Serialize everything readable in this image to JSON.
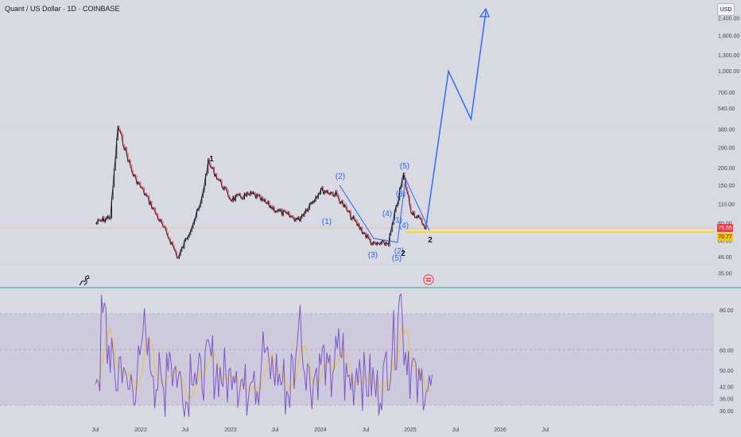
{
  "header": {
    "title": "Quant / US Dollar · 1D · COINBASE"
  },
  "currency_button": "USD",
  "price_axis": {
    "labels": [
      "2,400.00",
      "1,800.00",
      "1,300.00",
      "1,000.00",
      "700.00",
      "540.00",
      "380.00",
      "280.00",
      "200.00",
      "150.00",
      "110.00",
      "80.00",
      "60.00",
      "46.00",
      "35.00"
    ],
    "scale": "log"
  },
  "rsi_axis": {
    "labels": [
      "80.00",
      "60.00",
      "50.00",
      "42.00",
      "36.00",
      "30.00"
    ]
  },
  "time_axis": {
    "labels": [
      "Jul",
      "2022",
      "Jul",
      "2023",
      "Jul",
      "2024",
      "Jul",
      "2025",
      "Jul",
      "2026",
      "Jul"
    ]
  },
  "price_tags": {
    "current": {
      "value": "75.55",
      "color": "#f23645"
    },
    "support": {
      "value": "70.77",
      "color": "#f7c600"
    }
  },
  "wave_labels": {
    "blue": [
      "(2)",
      "(1)",
      "(3)",
      "(4)",
      "(5)",
      "(1)",
      "(2)",
      "(3)",
      "(4)",
      "(5)"
    ],
    "black": [
      "1",
      "2",
      "2"
    ]
  },
  "colors": {
    "background": "#d7dae1",
    "candle_up": "#131722",
    "candle_down": "#f23645",
    "projection": "#2962ff",
    "rsi": "#7e57c2",
    "rsi_ma": "#f7c600",
    "rsi_band": "#c9c3dc",
    "separator": "#26a69a"
  },
  "chart_data": [
    {
      "type": "line",
      "title": "Quant / US Dollar · 1D · COINBASE",
      "scale": "log",
      "ylim": [
        35,
        2400
      ],
      "x_ticks": [
        "Jul",
        "2022",
        "Jul",
        "2023",
        "Jul",
        "2024",
        "Jul",
        "2025",
        "Jul",
        "2026",
        "Jul"
      ],
      "series": [
        {
          "x": [
            "2021-07",
            "2021-09",
            "2021-10",
            "2021-12",
            "2022-02",
            "2022-05",
            "2022-06",
            "2022-09",
            "2022-10",
            "2023-01",
            "2023-04",
            "2023-07",
            "2023-10",
            "2024-01",
            "2024-03",
            "2024-05",
            "2024-08",
            "2024-10",
            "2024-12",
            "2025-01",
            "2025-03"
          ],
          "values": [
            80,
            90,
            400,
            180,
            120,
            60,
            45,
            110,
            220,
            120,
            130,
            100,
            85,
            140,
            130,
            90,
            56,
            58,
            180,
            100,
            75.55
          ]
        },
        {
          "x": [
            "2025-03",
            "2025-06",
            "2025-09",
            "2025-11"
          ],
          "values": [
            75.55,
            1000,
            450,
            2900
          ]
        }
      ]
    },
    {
      "type": "line",
      "ylim": [
        25,
        90
      ],
      "y_ticks": [
        80,
        60,
        50,
        42,
        36,
        30
      ],
      "series": [
        {
          "values": [
            50,
            75,
            60,
            45,
            55,
            40,
            45,
            50,
            70,
            55,
            45,
            40,
            60,
            50,
            45,
            35,
            55,
            45,
            50,
            55,
            50,
            48,
            45,
            55,
            45,
            40,
            55,
            45,
            60,
            50,
            50,
            45,
            40,
            50,
            75,
            55,
            45,
            50,
            55,
            45,
            55,
            60,
            45,
            45,
            55,
            45,
            45,
            40,
            45,
            55,
            65,
            85,
            60,
            50,
            40,
            45,
            40
          ]
        }
      ]
    }
  ]
}
